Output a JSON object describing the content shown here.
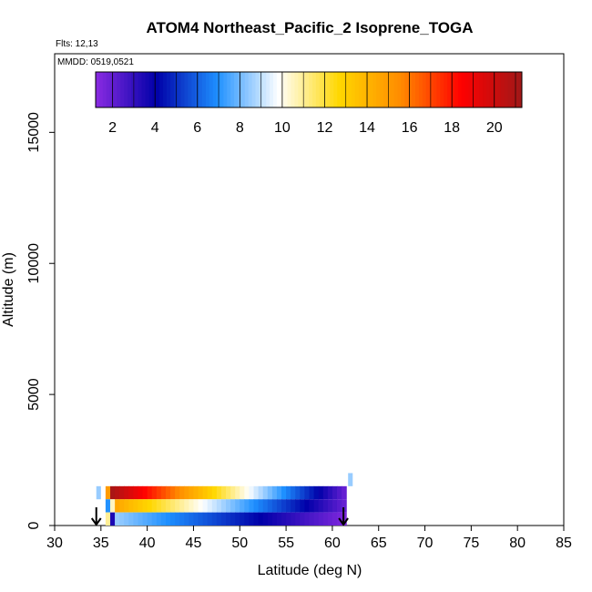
{
  "chart_data": {
    "type": "heatmap",
    "title": "ATOM4 Northeast_Pacific_2 Isoprene_TOGA",
    "flights_label": "Flts: 12,13",
    "dates_label": "MMDD: 0519,0521",
    "xlabel": "Latitude (deg N)",
    "ylabel": "Altitude (m)",
    "xlim": [
      30,
      85
    ],
    "ylim": [
      0,
      18000
    ],
    "x_ticks": [
      30,
      35,
      40,
      45,
      50,
      55,
      60,
      65,
      70,
      75,
      80,
      85
    ],
    "y_ticks": [
      0,
      5000,
      10000,
      15000
    ],
    "colorbar": {
      "range": [
        1.2,
        21.3
      ],
      "ticks": [
        2,
        4,
        6,
        8,
        10,
        12,
        14,
        16,
        18,
        20
      ],
      "colors": [
        "#8a2be2",
        "#0000a8",
        "#1e90ff",
        "#ffffff",
        "#ffd700",
        "#ff8c00",
        "#ff0000",
        "#a01818"
      ]
    },
    "rows": [
      {
        "alt_bottom": 1000,
        "alt_top": 1500,
        "lat_start": 36.0,
        "lat_end": 61.5,
        "value_start": 21.0,
        "value_end": 2.0
      },
      {
        "alt_bottom": 500,
        "alt_top": 1000,
        "lat_start": 36.5,
        "lat_end": 61.5,
        "value_start": 14.5,
        "value_end": 2.0
      },
      {
        "alt_bottom": 0,
        "alt_top": 500,
        "lat_start": 36.5,
        "lat_end": 61.5,
        "value_start": 8.5,
        "value_end": 1.5
      }
    ],
    "extra_cells": [
      {
        "alt_bottom": 1000,
        "alt_top": 1500,
        "lat_start": 34.5,
        "lat_end": 35.0,
        "value": 8.5
      },
      {
        "alt_bottom": 1000,
        "alt_top": 1500,
        "lat_start": 35.5,
        "lat_end": 36.0,
        "value": 15.0
      },
      {
        "alt_bottom": 500,
        "alt_top": 1000,
        "lat_start": 35.5,
        "lat_end": 36.0,
        "value": 7.0
      },
      {
        "alt_bottom": 500,
        "alt_top": 1000,
        "lat_start": 36.0,
        "lat_end": 36.5,
        "value": 10.5
      },
      {
        "alt_bottom": 0,
        "alt_top": 500,
        "lat_start": 35.5,
        "lat_end": 36.0,
        "value": 11.0
      },
      {
        "alt_bottom": 0,
        "alt_top": 500,
        "lat_start": 36.0,
        "lat_end": 36.5,
        "value": 3.5
      },
      {
        "alt_bottom": 1500,
        "alt_top": 2000,
        "lat_start": 61.7,
        "lat_end": 62.2,
        "value": 8.5
      }
    ],
    "arrows": [
      {
        "lat": 34.5
      },
      {
        "lat": 61.2
      }
    ]
  }
}
